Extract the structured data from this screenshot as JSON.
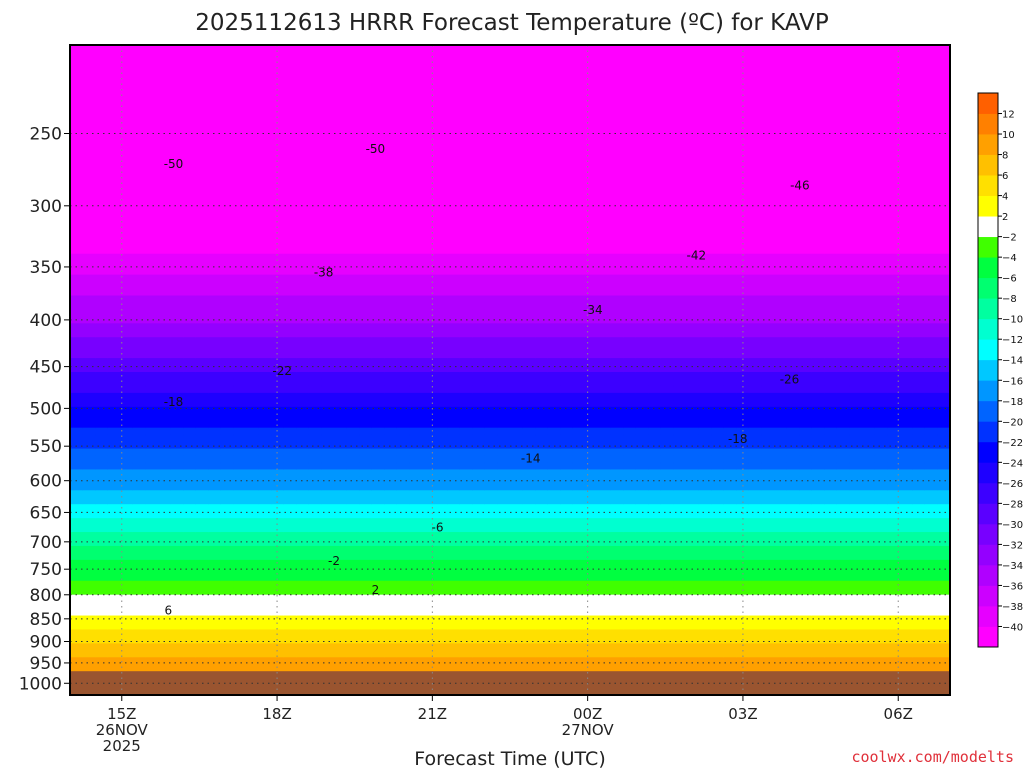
{
  "chart_data": {
    "type": "heatmap",
    "title": "2025112613 HRRR Forecast Temperature (ºC) for KAVP",
    "xlabel": "Forecast Time (UTC)",
    "ylabel": "",
    "credit": "coolwx.com/modelts",
    "x_hours": [
      14,
      15,
      16,
      17,
      18,
      19,
      20,
      21,
      22,
      23,
      24,
      25,
      26,
      27,
      28,
      29,
      30,
      31
    ],
    "xlim": [
      14,
      31
    ],
    "x_ticks": [
      {
        "hour": 15,
        "lines": [
          "15Z",
          "26NOV",
          "2025"
        ]
      },
      {
        "hour": 18,
        "lines": [
          "18Z"
        ]
      },
      {
        "hour": 21,
        "lines": [
          "21Z"
        ]
      },
      {
        "hour": 24,
        "lines": [
          "00Z",
          "27NOV"
        ]
      },
      {
        "hour": 27,
        "lines": [
          "03Z"
        ]
      },
      {
        "hour": 30,
        "lines": [
          "06Z"
        ]
      }
    ],
    "pressure_levels": [
      1000,
      950,
      900,
      850,
      800,
      750,
      700,
      650,
      600,
      550,
      500,
      450,
      400,
      350,
      300,
      250
    ],
    "ylim": [
      1030,
      200
    ],
    "ground_level_hpa": 970,
    "ground_color": "#9a5530",
    "temperature_profiles": [
      {
        "hour": 14,
        "t": [
          9,
          6,
          3,
          -2,
          -5,
          -9,
          -13,
          -17,
          -20,
          -24,
          -29,
          -34,
          -39,
          -44,
          -49
        ]
      },
      {
        "hour": 15,
        "t": [
          9,
          6,
          3,
          -2,
          -5,
          -9,
          -13,
          -17,
          -20,
          -24,
          -29,
          -34,
          -39,
          -44,
          -49
        ]
      },
      {
        "hour": 16,
        "t": [
          9,
          6,
          3,
          -2,
          -5,
          -9,
          -13,
          -17,
          -20,
          -24,
          -29,
          -34,
          -39,
          -44,
          -49
        ]
      },
      {
        "hour": 17,
        "t": [
          9,
          6,
          3,
          -2,
          -5,
          -9,
          -13,
          -17,
          -20,
          -24,
          -29,
          -34,
          -39,
          -44,
          -49
        ]
      },
      {
        "hour": 18,
        "t": [
          9,
          6,
          3,
          -2,
          -5,
          -9,
          -13,
          -17,
          -20,
          -24,
          -29,
          -34,
          -39,
          -44,
          -49
        ]
      },
      {
        "hour": 19,
        "t": [
          9,
          6,
          3,
          -2,
          -5,
          -9,
          -13,
          -17,
          -20,
          -24,
          -29,
          -34,
          -39,
          -44,
          -49
        ]
      },
      {
        "hour": 20,
        "t": [
          9,
          6,
          3,
          -2,
          -5,
          -9,
          -13,
          -17,
          -20,
          -24,
          -29,
          -34,
          -39,
          -44,
          -49
        ]
      },
      {
        "hour": 21,
        "t": [
          9,
          6,
          3,
          -2,
          -5,
          -9,
          -13,
          -17,
          -20,
          -24,
          -29,
          -34,
          -39,
          -44,
          -49
        ]
      },
      {
        "hour": 22,
        "t": [
          9,
          6,
          3,
          -2,
          -5,
          -9,
          -13,
          -17,
          -20,
          -24,
          -29,
          -34,
          -39,
          -44,
          -49
        ]
      },
      {
        "hour": 23,
        "t": [
          9,
          6,
          3,
          -2,
          -5,
          -9,
          -13,
          -17,
          -20,
          -24,
          -29,
          -34,
          -39,
          -44,
          -49
        ]
      },
      {
        "hour": 24,
        "t": [
          9,
          6,
          3,
          -2,
          -5,
          -9,
          -13,
          -17,
          -20,
          -24,
          -29,
          -34,
          -39,
          -44,
          -49
        ]
      },
      {
        "hour": 25,
        "t": [
          9,
          6,
          3,
          -2,
          -5,
          -9,
          -13,
          -17,
          -20,
          -24,
          -29,
          -34,
          -39,
          -44,
          -49
        ]
      },
      {
        "hour": 26,
        "t": [
          9,
          6,
          3,
          -2,
          -5,
          -9,
          -13,
          -17,
          -20,
          -24,
          -29,
          -34,
          -39,
          -44,
          -49
        ]
      },
      {
        "hour": 27,
        "t": [
          9,
          6,
          3,
          -2,
          -5,
          -9,
          -13,
          -17,
          -20,
          -24,
          -29,
          -34,
          -39,
          -44,
          -49
        ]
      },
      {
        "hour": 28,
        "t": [
          9,
          6,
          3,
          -2,
          -5,
          -9,
          -13,
          -17,
          -20,
          -24,
          -29,
          -34,
          -39,
          -44,
          -49
        ]
      },
      {
        "hour": 29,
        "t": [
          9,
          6,
          3,
          -2,
          -5,
          -9,
          -13,
          -17,
          -20,
          -24,
          -29,
          -34,
          -39,
          -44,
          -49
        ]
      },
      {
        "hour": 30,
        "t": [
          9,
          6,
          3,
          -2,
          -5,
          -9,
          -13,
          -17,
          -20,
          -24,
          -29,
          -34,
          -39,
          -44,
          -49
        ]
      },
      {
        "hour": 31,
        "t": [
          9,
          6,
          3,
          -2,
          -5,
          -9,
          -13,
          -17,
          -20,
          -24,
          -29,
          -34,
          -39,
          -44,
          -49
        ]
      }
    ],
    "profile_levels_hpa": [
      950,
      900,
      850,
      800,
      750,
      700,
      650,
      600,
      550,
      500,
      450,
      400,
      350,
      300,
      250
    ],
    "contour_labels": [
      {
        "text": "-50",
        "hour": 16.0,
        "p": 270
      },
      {
        "text": "-50",
        "hour": 19.9,
        "p": 260
      },
      {
        "text": "-46",
        "hour": 28.1,
        "p": 285
      },
      {
        "text": "-42",
        "hour": 26.1,
        "p": 340
      },
      {
        "text": "-38",
        "hour": 18.9,
        "p": 355
      },
      {
        "text": "-34",
        "hour": 24.1,
        "p": 390
      },
      {
        "text": "-26",
        "hour": 27.9,
        "p": 465
      },
      {
        "text": "-22",
        "hour": 18.1,
        "p": 455
      },
      {
        "text": "-18",
        "hour": 16.0,
        "p": 492
      },
      {
        "text": "-18",
        "hour": 26.9,
        "p": 540
      },
      {
        "text": "-14",
        "hour": 22.9,
        "p": 567
      },
      {
        "text": "-6",
        "hour": 21.1,
        "p": 675
      },
      {
        "text": "-2",
        "hour": 19.1,
        "p": 735
      },
      {
        "text": "2",
        "hour": 19.9,
        "p": 790
      },
      {
        "text": "6",
        "hour": 15.9,
        "p": 832
      }
    ],
    "colorbar": {
      "levels": [
        -40,
        -38,
        -36,
        -34,
        -32,
        -30,
        -28,
        -26,
        -24,
        -22,
        -20,
        -18,
        -16,
        -14,
        -12,
        -10,
        -8,
        -6,
        -4,
        -2,
        2,
        4,
        6,
        8,
        10,
        12
      ],
      "colors": [
        "#ff00ff",
        "#e600ff",
        "#cc00ff",
        "#b000ff",
        "#9400ff",
        "#7800ff",
        "#5a00ff",
        "#3c00ff",
        "#1e00ff",
        "#0000ff",
        "#0032ff",
        "#0064ff",
        "#0096ff",
        "#00c8ff",
        "#00ffff",
        "#00ffd0",
        "#00ffa0",
        "#00ff70",
        "#00ff40",
        "#40ff00",
        "#ffffff",
        "#ffff00",
        "#ffe000",
        "#ffc000",
        "#ffa000",
        "#ff8000",
        "#ff6000"
      ]
    },
    "grid": true
  }
}
